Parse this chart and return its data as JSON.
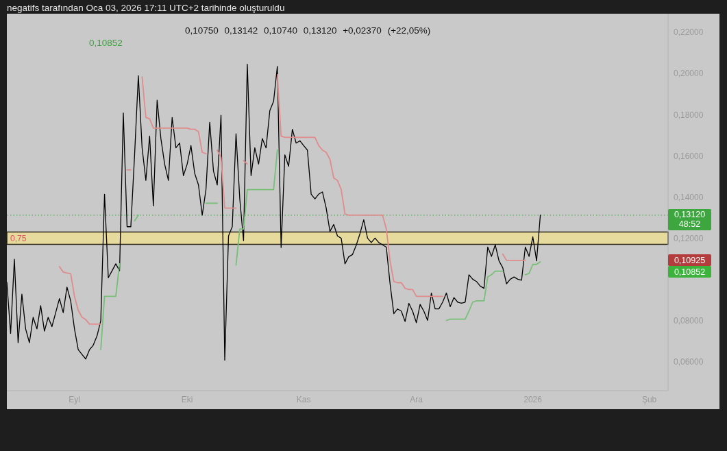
{
  "chart_data": {
    "type": "line",
    "title": "negatifs tarafından Oca 03, 2026 17:11 UTC+2 tarihinde oluşturuldu",
    "subtitle": "0,10750 0,13142 0,10740 0,13120 +0,02370 (+22,05%)",
    "annotations": [
      "0,10852",
      "48:52",
      "0,10925",
      "0,10852"
    ],
    "categories": [
      null,
      null,
      null,
      null,
      null,
      null,
      null,
      null,
      null,
      null,
      null,
      null,
      null,
      null,
      null,
      null,
      null,
      null,
      "Eyl",
      null,
      null,
      null,
      null,
      null,
      null,
      null,
      null,
      null,
      null,
      null,
      null,
      null,
      null,
      null,
      null,
      null,
      null,
      null,
      null,
      null,
      null,
      null,
      null,
      null,
      null,
      null,
      null,
      null,
      "Eki",
      null,
      null,
      null,
      null,
      null,
      null,
      null,
      null,
      null,
      null,
      null,
      null,
      null,
      null,
      null,
      null,
      null,
      null,
      null,
      null,
      null,
      null,
      null,
      null,
      null,
      null,
      null,
      null,
      null,
      null,
      "Kas",
      null,
      null,
      null,
      null,
      null,
      null,
      null,
      null,
      null,
      null,
      null,
      null,
      null,
      null,
      null,
      null,
      null,
      null,
      null,
      null,
      null,
      null,
      null,
      null,
      null,
      null,
      null,
      null,
      null,
      "Ara",
      null,
      null,
      null,
      null,
      null,
      null,
      null,
      null,
      null,
      null,
      null,
      null,
      null,
      null,
      null,
      null,
      null,
      null,
      null,
      null,
      null,
      null,
      null,
      null,
      null,
      null,
      null,
      null,
      null,
      null,
      "2026",
      null,
      null,
      null,
      null,
      null,
      null,
      null,
      null,
      null,
      null,
      null,
      null,
      null,
      null,
      null,
      null,
      null,
      null,
      null,
      null,
      null,
      null,
      null,
      null,
      null,
      null,
      null,
      null,
      null,
      null,
      "Şub",
      null,
      null,
      null,
      null,
      null
    ],
    "series": [
      {
        "color": "#000000",
        "values": [
          0.0986,
          0.0738,
          0.1098,
          0.0693,
          0.0929,
          0.076,
          0.0693,
          0.0816,
          0.076,
          0.0873,
          0.0749,
          0.0816,
          0.0771,
          0.0839,
          0.0907,
          0.0839,
          0.0963,
          0.0895,
          0.076,
          0.0659,
          0.0636,
          0.0614,
          0.0659,
          0.0681,
          0.0726,
          0.08,
          0.1414,
          0.1008,
          0.1042,
          0.1076,
          0.1042,
          0.1808,
          0.1256,
          0.1256,
          0.1605,
          0.1989,
          0.1639,
          0.1481,
          0.1696,
          0.1357,
          0.187,
          0.1684,
          0.156,
          0.1481,
          0.1786,
          0.1639,
          0.1662,
          0.1504,
          0.156,
          0.165,
          0.1515,
          0.1459,
          0.1312,
          0.1436,
          0.1763,
          0.1526,
          0.1459,
          0.1797,
          0.0608,
          0.1211,
          0.1256,
          0.1707,
          0.1391,
          0.1188,
          0.2045,
          0.1504,
          0.1639,
          0.156,
          0.1684,
          0.1639,
          0.182,
          0.1865,
          0.2034,
          0.1155,
          0.1605,
          0.1549,
          0.1729,
          0.1662,
          0.1673,
          0.165,
          0.1628,
          0.1414,
          0.1391,
          0.1414,
          0.1425,
          0.1346,
          0.1233,
          0.1267,
          0.1211,
          0.12,
          0.1076,
          0.111,
          0.1121,
          0.1166,
          0.1223,
          0.129,
          0.1201,
          0.1179,
          0.1201,
          0.1179,
          0.1168,
          0.1157,
          0.0979,
          0.0834,
          0.0857,
          0.0846,
          0.0796,
          0.0884,
          0.0846,
          0.079,
          0.0879,
          0.0846,
          0.0801,
          0.0934,
          0.0857,
          0.0857,
          0.089,
          0.0934,
          0.0868,
          0.0912,
          0.089,
          0.0885,
          0.089,
          0.1023,
          0.1001,
          0.099,
          0.0968,
          0.0957,
          0.1157,
          0.1112,
          0.1168,
          0.109,
          0.1057,
          0.0979,
          0.1001,
          0.1012,
          0.1001,
          0.0996,
          0.1157,
          0.1112,
          0.1207,
          0.109,
          0.1312,
          null,
          null,
          null,
          null,
          null,
          null,
          null,
          null,
          null,
          null,
          null,
          null,
          null,
          null,
          null,
          null,
          null,
          null,
          null,
          null,
          null,
          null,
          null,
          null,
          null,
          null,
          null,
          null,
          null,
          null,
          null,
          null,
          null,
          null
        ]
      },
      {
        "color": "#e08c8c",
        "values": [
          null,
          null,
          null,
          null,
          null,
          null,
          null,
          null,
          null,
          null,
          null,
          null,
          null,
          null,
          0.1062,
          0.1036,
          0.1031,
          0.1028,
          0.0918,
          0.085,
          0.0817,
          0.0805,
          0.0783,
          0.0783,
          0.0783,
          0.0783,
          null,
          null,
          null,
          null,
          null,
          null,
          0.1532,
          0.1532,
          null,
          null,
          0.1983,
          0.1786,
          0.178,
          0.1735,
          0.1735,
          0.1735,
          0.1735,
          0.1735,
          0.1735,
          0.1735,
          0.1735,
          0.1735,
          0.1735,
          0.1729,
          0.1729,
          0.1718,
          0.1617,
          0.1611,
          null,
          null,
          0.1628,
          0.1594,
          0.1346,
          0.1346,
          0.1346,
          0.1346,
          null,
          0.1577,
          0.156,
          null,
          null,
          null,
          null,
          null,
          null,
          null,
          0.1994,
          0.1696,
          0.169,
          0.169,
          0.169,
          0.169,
          0.169,
          0.169,
          0.169,
          0.169,
          0.169,
          0.165,
          0.1628,
          0.1617,
          0.1583,
          0.1493,
          0.1481,
          0.1436,
          0.1318,
          0.1312,
          0.1312,
          0.1312,
          0.1312,
          0.1312,
          0.1312,
          0.1312,
          0.1312,
          0.1312,
          0.1312,
          0.1246,
          0.109,
          0.099,
          0.0984,
          0.0984,
          0.0957,
          0.0951,
          0.0951,
          0.0918,
          0.0918,
          0.0918,
          0.0918,
          0.0918,
          0.0918,
          0.0918,
          0.0918,
          null,
          null,
          null,
          null,
          null,
          null,
          null,
          null,
          null,
          null,
          null,
          null,
          null,
          null,
          null,
          0.1123,
          0.10925,
          0.10925,
          0.10925,
          0.10925,
          0.10925,
          0.10925,
          null,
          null,
          null,
          null,
          null,
          null,
          null,
          null,
          null,
          null,
          null,
          null,
          null,
          null,
          null,
          null,
          null,
          null,
          null,
          null,
          null,
          null,
          null,
          null,
          null,
          null,
          null,
          null,
          null,
          null,
          null,
          null,
          null,
          null,
          null,
          null,
          null,
          null
        ]
      },
      {
        "color": "#78bf78",
        "values": [
          null,
          null,
          null,
          null,
          null,
          null,
          null,
          null,
          null,
          null,
          null,
          null,
          null,
          null,
          null,
          null,
          null,
          null,
          null,
          null,
          null,
          null,
          null,
          null,
          null,
          0.0659,
          0.0918,
          0.0918,
          0.0918,
          0.0918,
          0.1076,
          null,
          null,
          null,
          0.1284,
          0.1312,
          null,
          null,
          null,
          null,
          null,
          null,
          null,
          null,
          null,
          null,
          null,
          null,
          null,
          null,
          null,
          null,
          null,
          0.137,
          0.137,
          0.137,
          0.137,
          null,
          null,
          null,
          null,
          0.107,
          0.1245,
          0.1245,
          0.1436,
          0.1436,
          0.1436,
          0.1436,
          0.1436,
          0.1436,
          0.1436,
          0.1436,
          0.1628,
          null,
          null,
          null,
          null,
          null,
          null,
          null,
          null,
          null,
          null,
          null,
          null,
          null,
          null,
          null,
          null,
          null,
          null,
          null,
          null,
          null,
          null,
          null,
          null,
          null,
          null,
          null,
          null,
          null,
          null,
          null,
          null,
          null,
          null,
          null,
          null,
          null,
          null,
          null,
          null,
          null,
          null,
          null,
          null,
          0.0801,
          0.0807,
          0.0807,
          0.0807,
          0.0807,
          0.0807,
          0.0846,
          0.089,
          0.0896,
          0.0896,
          0.0896,
          0.1012,
          0.1023,
          0.104,
          0.104,
          0.104,
          null,
          null,
          null,
          null,
          null,
          0.1023,
          0.1029,
          0.1073,
          0.1073,
          0.10852,
          null,
          null,
          null,
          null,
          null,
          null,
          null,
          null,
          null,
          null,
          null,
          null,
          null,
          null,
          null,
          null,
          null,
          null,
          null,
          null,
          null,
          null,
          null,
          null,
          null,
          null,
          null,
          null,
          null,
          null,
          null,
          null,
          null,
          null
        ]
      }
    ],
    "ylim": [
      0.046,
      0.229
    ],
    "yticks": [
      {
        "value": 0.06,
        "label": "0,06000"
      },
      {
        "value": 0.08,
        "label": "0,08000"
      },
      {
        "value": 0.12,
        "label": "0,12000"
      },
      {
        "value": 0.14,
        "label": "0,14000"
      },
      {
        "value": 0.16,
        "label": "0,16000"
      },
      {
        "value": 0.18,
        "label": "0,18000"
      },
      {
        "value": 0.2,
        "label": "0,20000"
      },
      {
        "value": 0.22,
        "label": "0,22000"
      }
    ],
    "marker": "none",
    "ref_lines": [
      {
        "axis": "y",
        "value": 0.1312,
        "label": "0,13120",
        "color": "#3ea63e",
        "line_style": "dotted"
      }
    ],
    "bands": [
      {
        "axis": "y",
        "from": 0.117,
        "to": 0.123,
        "label": "0,75",
        "color": "#e6da9c"
      }
    ]
  }
}
